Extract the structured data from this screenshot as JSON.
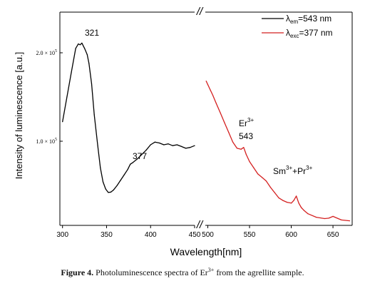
{
  "chart_data": {
    "type": "line",
    "title": "",
    "xlabel": "Wavelength[nm]",
    "ylabel": "Intensity of luminescence [a.u.]",
    "xticks": [
      "300",
      "350",
      "400",
      "450",
      "500",
      "550",
      "600",
      "650"
    ],
    "yticks": [
      {
        "mantissa": "2.0 × 10",
        "exp": "5"
      },
      {
        "mantissa": "1.0 × 10",
        "exp": "5"
      }
    ],
    "axis_break_marker": "//",
    "xlim_left": [
      297,
      450
    ],
    "xlim_right": [
      497,
      673
    ],
    "series": [
      {
        "name_base": "λ",
        "name_sub": "em",
        "name_rest": "=543 nm",
        "color": "#000000",
        "x": [
          300,
          305,
          310,
          315,
          318,
          320,
          322,
          325,
          328,
          330,
          333,
          336,
          340,
          343,
          346,
          349,
          352,
          355,
          358,
          362,
          366,
          370,
          374,
          377,
          380,
          385,
          390,
          395,
          400,
          405,
          410,
          415,
          420,
          425,
          430,
          435,
          440,
          445,
          450
        ],
        "y": [
          122000,
          150000,
          178000,
          205000,
          210000,
          209000,
          211000,
          205000,
          198000,
          188000,
          165000,
          130000,
          95000,
          70000,
          54000,
          46000,
          42000,
          42500,
          45000,
          50000,
          56000,
          62000,
          68000,
          74000,
          76000,
          80000,
          85000,
          90000,
          96000,
          99000,
          98000,
          96000,
          97000,
          95000,
          96000,
          94000,
          92000,
          93000,
          95000
        ]
      },
      {
        "name_base": "λ",
        "name_sub": "exc",
        "name_rest": "=377 nm",
        "color": "#d42020",
        "x": [
          498,
          500,
          503,
          506,
          510,
          515,
          520,
          525,
          530,
          535,
          540,
          543,
          546,
          550,
          555,
          560,
          565,
          570,
          575,
          580,
          585,
          590,
          595,
          600,
          603,
          606,
          609,
          612,
          615,
          620,
          630,
          640,
          645,
          650,
          660,
          670
        ],
        "y": [
          168000,
          164000,
          158000,
          152000,
          143000,
          132000,
          121000,
          110000,
          99000,
          92000,
          91000,
          93000,
          85000,
          77000,
          70000,
          63000,
          59000,
          55000,
          48000,
          42000,
          36000,
          33000,
          31000,
          30000,
          33000,
          38000,
          30000,
          25000,
          22000,
          18000,
          14000,
          12500,
          13000,
          15000,
          11000,
          10000
        ]
      }
    ],
    "annotations": [
      {
        "text": "321"
      },
      {
        "text": "377"
      },
      {
        "text": "Er",
        "sup": "3+",
        "line2": "543"
      },
      {
        "text": "Sm",
        "sup": "3+",
        "mid": "+Pr",
        "sup2": "3+"
      }
    ],
    "legend_position": "top-right",
    "grid": false
  },
  "caption": {
    "label": "Figure 4.",
    "text_before": " Photoluminescence spectra of Er",
    "sup": "3+",
    "text_after": " from the agrellite sample."
  }
}
